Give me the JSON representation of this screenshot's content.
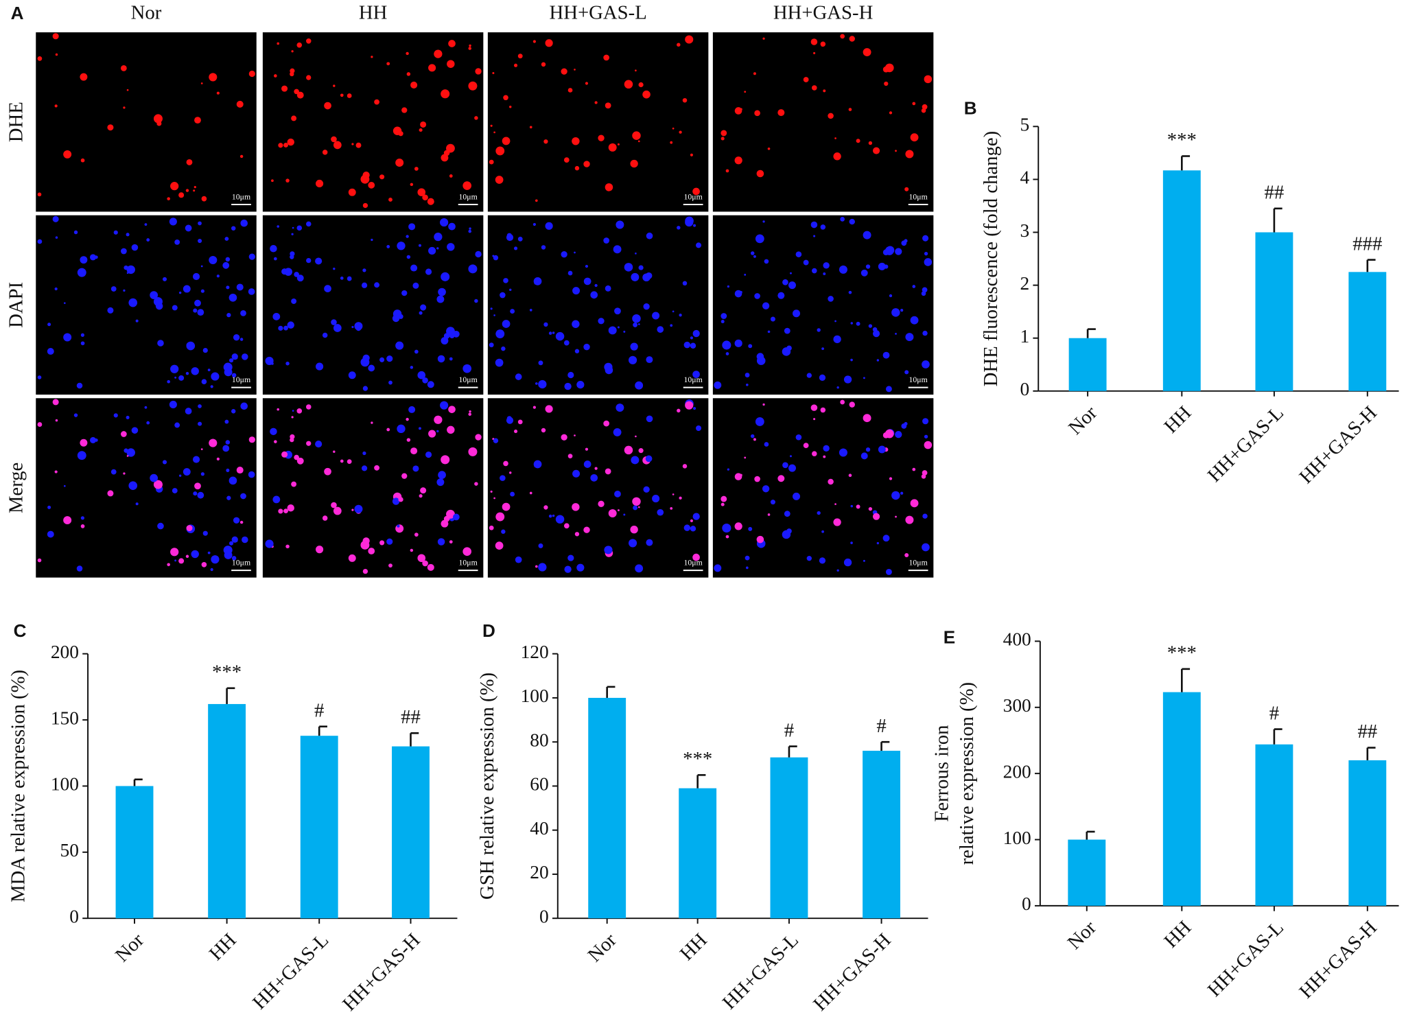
{
  "panel_a": {
    "label": "A",
    "columns": [
      "Nor",
      "HH",
      "HH+GAS-L",
      "HH+GAS-H"
    ],
    "rows": [
      "DHE",
      "DAPI",
      "Merge"
    ],
    "scale_bar": "10μm"
  },
  "chart_data": [
    {
      "type": "bar",
      "panel": "B",
      "ylabel": "DHE fluorescence (fold change)",
      "categories": [
        "Nor",
        "HH",
        "HH+GAS-L",
        "HH+GAS-H"
      ],
      "values": [
        1.0,
        4.17,
        3.0,
        2.25
      ],
      "errors": [
        0.17,
        0.27,
        0.45,
        0.23
      ],
      "annotations": [
        null,
        "***",
        "##",
        "###"
      ],
      "color": "#00aeef",
      "ylim": [
        0,
        5
      ],
      "yticks": [
        0,
        1,
        2,
        3,
        4,
        5
      ]
    },
    {
      "type": "bar",
      "panel": "C",
      "ylabel": "MDA relative expression (%)",
      "categories": [
        "Nor",
        "HH",
        "HH+GAS-L",
        "HH+GAS-H"
      ],
      "values": [
        100,
        162,
        138,
        130
      ],
      "errors": [
        5,
        12,
        7,
        10
      ],
      "annotations": [
        null,
        "***",
        "#",
        "##"
      ],
      "color": "#00aeef",
      "ylim": [
        0,
        200
      ],
      "yticks": [
        0,
        50,
        100,
        150,
        200
      ]
    },
    {
      "type": "bar",
      "panel": "D",
      "ylabel": "GSH relative expression (%)",
      "categories": [
        "Nor",
        "HH",
        "HH+GAS-L",
        "HH+GAS-H"
      ],
      "values": [
        100,
        59,
        73,
        76
      ],
      "errors": [
        5,
        6,
        5,
        4
      ],
      "annotations": [
        null,
        "***",
        "#",
        "#"
      ],
      "color": "#00aeef",
      "ylim": [
        0,
        120
      ],
      "yticks": [
        0,
        20,
        40,
        60,
        80,
        100,
        120
      ]
    },
    {
      "type": "bar",
      "panel": "E",
      "ylabel": [
        "Ferrous iron",
        "relative expression (%)"
      ],
      "categories": [
        "Nor",
        "HH",
        "HH+GAS-L",
        "HH+GAS-H"
      ],
      "values": [
        100,
        323,
        244,
        220
      ],
      "errors": [
        12,
        35,
        23,
        19
      ],
      "annotations": [
        null,
        "***",
        "#",
        "##"
      ],
      "color": "#00aeef",
      "ylim": [
        0,
        400
      ],
      "yticks": [
        0,
        100,
        200,
        300,
        400
      ]
    }
  ]
}
